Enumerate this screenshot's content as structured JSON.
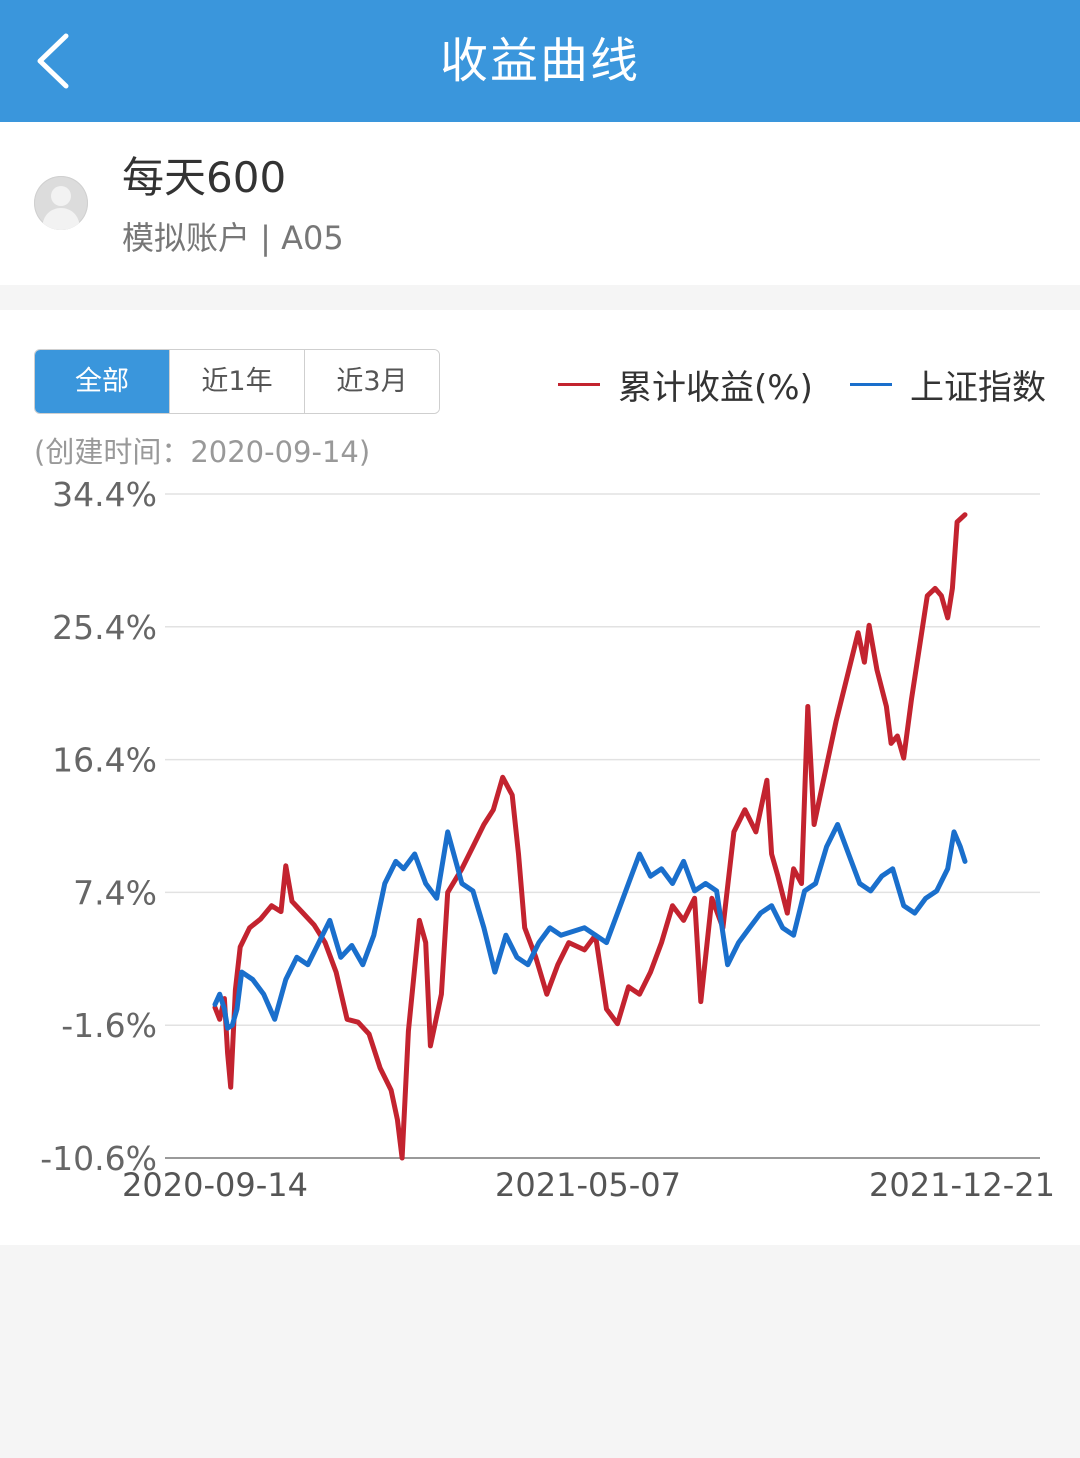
{
  "header": {
    "title": "收益曲线",
    "back_icon": "chevron-left-icon"
  },
  "profile": {
    "avatar_icon": "user-avatar-icon",
    "name": "每天600",
    "account": "模拟账户 | A05"
  },
  "tabs": [
    {
      "label": "全部",
      "active": true
    },
    {
      "label": "近1年",
      "active": false
    },
    {
      "label": "近3月",
      "active": false
    }
  ],
  "created_text": "(创建时间：2020-09-14)",
  "colors": {
    "brand": "#3a96dc",
    "series_return": "#c3232f",
    "series_index": "#1a6fcc"
  },
  "chart_data": {
    "type": "line",
    "y_tick_labels": [
      "34.4%",
      "25.4%",
      "16.4%",
      "7.4%",
      "-1.6%",
      "-10.6%"
    ],
    "ylim": [
      -10.6,
      34.4
    ],
    "x_tick_labels": [
      "2020-09-14",
      "2021-05-07",
      "2021-12-21"
    ],
    "grid": "horizontal",
    "legend_position": "top-right",
    "series": [
      {
        "name": "累计收益(%)",
        "color": "#c3232f",
        "points": [
          [
            "2020-09-14",
            -0.4
          ],
          [
            "2020-09-17",
            -1.2
          ],
          [
            "2020-09-20",
            0.2
          ],
          [
            "2020-09-22",
            -3.5
          ],
          [
            "2020-09-24",
            -5.8
          ],
          [
            "2020-09-27",
            0.8
          ],
          [
            "2020-09-30",
            3.7
          ],
          [
            "2020-10-06",
            5.0
          ],
          [
            "2020-10-13",
            5.6
          ],
          [
            "2020-10-20",
            6.5
          ],
          [
            "2020-10-26",
            6.1
          ],
          [
            "2020-10-29",
            9.2
          ],
          [
            "2020-11-02",
            6.8
          ],
          [
            "2020-11-09",
            6.0
          ],
          [
            "2020-11-16",
            5.2
          ],
          [
            "2020-11-23",
            4.0
          ],
          [
            "2020-11-30",
            2.0
          ],
          [
            "2020-12-07",
            -1.2
          ],
          [
            "2020-12-14",
            -1.4
          ],
          [
            "2020-12-21",
            -2.2
          ],
          [
            "2020-12-28",
            -4.5
          ],
          [
            "2021-01-04",
            -6.0
          ],
          [
            "2021-01-08",
            -8.0
          ],
          [
            "2021-01-11",
            -10.6
          ],
          [
            "2021-01-15",
            -2.0
          ],
          [
            "2021-01-22",
            5.5
          ],
          [
            "2021-01-26",
            4.0
          ],
          [
            "2021-01-29",
            -3.0
          ],
          [
            "2021-02-05",
            0.5
          ],
          [
            "2021-02-09",
            7.4
          ],
          [
            "2021-02-18",
            9.0
          ],
          [
            "2021-02-25",
            10.5
          ],
          [
            "2021-03-04",
            12.0
          ],
          [
            "2021-03-10",
            13.0
          ],
          [
            "2021-03-16",
            15.2
          ],
          [
            "2021-03-22",
            14.0
          ],
          [
            "2021-03-26",
            10.0
          ],
          [
            "2021-03-30",
            5.0
          ],
          [
            "2021-04-06",
            3.0
          ],
          [
            "2021-04-13",
            0.5
          ],
          [
            "2021-04-20",
            2.5
          ],
          [
            "2021-04-27",
            4.0
          ],
          [
            "2021-05-07",
            3.5
          ],
          [
            "2021-05-14",
            4.5
          ],
          [
            "2021-05-21",
            -0.5
          ],
          [
            "2021-05-28",
            -1.5
          ],
          [
            "2021-06-04",
            1.0
          ],
          [
            "2021-06-11",
            0.5
          ],
          [
            "2021-06-18",
            2.0
          ],
          [
            "2021-06-25",
            4.0
          ],
          [
            "2021-07-02",
            6.5
          ],
          [
            "2021-07-09",
            5.5
          ],
          [
            "2021-07-16",
            7.0
          ],
          [
            "2021-07-20",
            0.0
          ],
          [
            "2021-07-27",
            7.0
          ],
          [
            "2021-08-03",
            5.0
          ],
          [
            "2021-08-10",
            11.5
          ],
          [
            "2021-08-17",
            13.0
          ],
          [
            "2021-08-24",
            11.5
          ],
          [
            "2021-08-31",
            15.0
          ],
          [
            "2021-09-03",
            10.0
          ],
          [
            "2021-09-07",
            8.5
          ],
          [
            "2021-09-13",
            6.0
          ],
          [
            "2021-09-17",
            9.0
          ],
          [
            "2021-09-22",
            8.0
          ],
          [
            "2021-09-26",
            20.0
          ],
          [
            "2021-09-30",
            12.0
          ],
          [
            "2021-10-08",
            16.0
          ],
          [
            "2021-10-14",
            19.0
          ],
          [
            "2021-10-21",
            22.0
          ],
          [
            "2021-10-28",
            25.0
          ],
          [
            "2021-11-01",
            23.0
          ],
          [
            "2021-11-04",
            25.5
          ],
          [
            "2021-11-09",
            22.5
          ],
          [
            "2021-11-15",
            20.0
          ],
          [
            "2021-11-18",
            17.5
          ],
          [
            "2021-11-22",
            18.0
          ],
          [
            "2021-11-26",
            16.5
          ],
          [
            "2021-12-01",
            20.5
          ],
          [
            "2021-12-06",
            24.0
          ],
          [
            "2021-12-11",
            27.5
          ],
          [
            "2021-12-16",
            28.0
          ],
          [
            "2021-12-20",
            27.5
          ],
          [
            "2021-12-24",
            26.0
          ],
          [
            "2021-12-27",
            28.0
          ],
          [
            "2021-12-30",
            32.5
          ],
          [
            "2022-01-04",
            33.0
          ]
        ]
      },
      {
        "name": "上证指数",
        "color": "#1a6fcc",
        "points": [
          [
            "2020-09-14",
            -0.2
          ],
          [
            "2020-09-17",
            0.5
          ],
          [
            "2020-09-20",
            -0.5
          ],
          [
            "2020-09-22",
            -1.8
          ],
          [
            "2020-09-25",
            -1.6
          ],
          [
            "2020-09-28",
            -0.5
          ],
          [
            "2020-10-01",
            2.0
          ],
          [
            "2020-10-08",
            1.5
          ],
          [
            "2020-10-15",
            0.5
          ],
          [
            "2020-10-22",
            -1.2
          ],
          [
            "2020-10-29",
            1.5
          ],
          [
            "2020-11-05",
            3.0
          ],
          [
            "2020-11-12",
            2.5
          ],
          [
            "2020-11-19",
            4.0
          ],
          [
            "2020-11-26",
            5.5
          ],
          [
            "2020-12-03",
            3.0
          ],
          [
            "2020-12-10",
            3.8
          ],
          [
            "2020-12-17",
            2.5
          ],
          [
            "2020-12-24",
            4.5
          ],
          [
            "2020-12-31",
            8.0
          ],
          [
            "2021-01-07",
            9.5
          ],
          [
            "2021-01-12",
            9.0
          ],
          [
            "2021-01-19",
            10.0
          ],
          [
            "2021-01-26",
            8.0
          ],
          [
            "2021-02-02",
            7.0
          ],
          [
            "2021-02-09",
            11.5
          ],
          [
            "2021-02-18",
            8.0
          ],
          [
            "2021-02-25",
            7.5
          ],
          [
            "2021-03-04",
            5.0
          ],
          [
            "2021-03-11",
            2.0
          ],
          [
            "2021-03-18",
            4.5
          ],
          [
            "2021-03-25",
            3.0
          ],
          [
            "2021-04-01",
            2.5
          ],
          [
            "2021-04-08",
            4.0
          ],
          [
            "2021-04-15",
            5.0
          ],
          [
            "2021-04-22",
            4.5
          ],
          [
            "2021-05-07",
            5.0
          ],
          [
            "2021-05-14",
            4.5
          ],
          [
            "2021-05-21",
            4.0
          ],
          [
            "2021-05-28",
            6.0
          ],
          [
            "2021-06-04",
            8.0
          ],
          [
            "2021-06-11",
            10.0
          ],
          [
            "2021-06-18",
            8.5
          ],
          [
            "2021-06-25",
            9.0
          ],
          [
            "2021-07-02",
            8.0
          ],
          [
            "2021-07-09",
            9.5
          ],
          [
            "2021-07-16",
            7.5
          ],
          [
            "2021-07-23",
            8.0
          ],
          [
            "2021-07-30",
            7.5
          ],
          [
            "2021-08-06",
            2.5
          ],
          [
            "2021-08-13",
            4.0
          ],
          [
            "2021-08-20",
            5.0
          ],
          [
            "2021-08-27",
            6.0
          ],
          [
            "2021-09-03",
            6.5
          ],
          [
            "2021-09-10",
            5.0
          ],
          [
            "2021-09-17",
            4.5
          ],
          [
            "2021-09-24",
            7.5
          ],
          [
            "2021-10-01",
            8.0
          ],
          [
            "2021-10-08",
            10.5
          ],
          [
            "2021-10-15",
            12.0
          ],
          [
            "2021-10-22",
            10.0
          ],
          [
            "2021-10-29",
            8.0
          ],
          [
            "2021-11-05",
            7.5
          ],
          [
            "2021-11-12",
            8.5
          ],
          [
            "2021-11-19",
            9.0
          ],
          [
            "2021-11-26",
            6.5
          ],
          [
            "2021-12-03",
            6.0
          ],
          [
            "2021-12-10",
            7.0
          ],
          [
            "2021-12-17",
            7.5
          ],
          [
            "2021-12-24",
            9.0
          ],
          [
            "2021-12-28",
            11.5
          ],
          [
            "2022-01-01",
            10.5
          ],
          [
            "2022-01-04",
            9.5
          ]
        ]
      }
    ]
  }
}
